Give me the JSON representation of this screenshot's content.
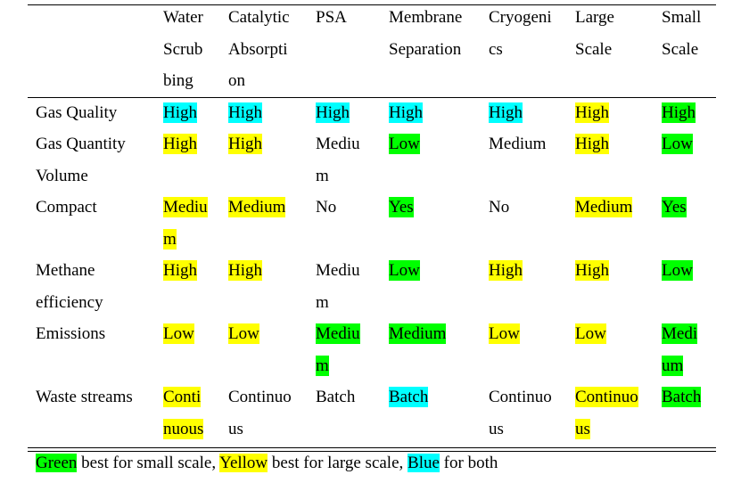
{
  "colors": {
    "green": "#00ff00",
    "yellow": "#ffff00",
    "blue": "#00ffff"
  },
  "headers": [
    "Water\nScrub\nbing",
    "Catalytic\nAbsorpti\non",
    "PSA",
    "Membrane\nSeparation",
    "Cryogeni\ncs",
    "Large\nScale",
    "Small\nScale"
  ],
  "rows": [
    {
      "label": "Gas Quality",
      "cells": [
        {
          "text": "High",
          "color": "blue"
        },
        {
          "text": "High",
          "color": "blue"
        },
        {
          "text": "High",
          "color": "blue"
        },
        {
          "text": "High",
          "color": "blue"
        },
        {
          "text": "High",
          "color": "blue"
        },
        {
          "text": "High",
          "color": "yellow"
        },
        {
          "text": "High",
          "color": "green"
        }
      ]
    },
    {
      "label": "Gas    Quantity\nVolume",
      "cells": [
        {
          "text": "High",
          "color": "yellow"
        },
        {
          "text": "High",
          "color": "yellow"
        },
        {
          "text": "Mediu\nm",
          "color": ""
        },
        {
          "text": "Low",
          "color": "green"
        },
        {
          "text": "Medium",
          "color": ""
        },
        {
          "text": "High",
          "color": "yellow"
        },
        {
          "text": "Low",
          "color": "green"
        }
      ]
    },
    {
      "label": "Compact",
      "cells": [
        {
          "text": "Mediu\nm",
          "color": "yellow"
        },
        {
          "text": "Medium",
          "color": "yellow"
        },
        {
          "text": "No",
          "color": ""
        },
        {
          "text": "Yes",
          "color": "green"
        },
        {
          "text": "No",
          "color": ""
        },
        {
          "text": "Medium",
          "color": "yellow"
        },
        {
          "text": "Yes",
          "color": "green"
        }
      ]
    },
    {
      "label": "Methane\nefficiency",
      "cells": [
        {
          "text": "High",
          "color": "yellow"
        },
        {
          "text": "High",
          "color": "yellow"
        },
        {
          "text": "Mediu\nm",
          "color": ""
        },
        {
          "text": "Low",
          "color": "green"
        },
        {
          "text": "High",
          "color": "yellow"
        },
        {
          "text": "High",
          "color": "yellow"
        },
        {
          "text": "Low",
          "color": "green"
        }
      ]
    },
    {
      "label": "Emissions",
      "cells": [
        {
          "text": "Low",
          "color": "yellow"
        },
        {
          "text": "Low",
          "color": "yellow"
        },
        {
          "text": "Mediu\nm",
          "color": "green"
        },
        {
          "text": "Medium",
          "color": "green"
        },
        {
          "text": "Low",
          "color": "yellow"
        },
        {
          "text": "Low",
          "color": "yellow"
        },
        {
          "text": "Medi\num",
          "color": "green"
        }
      ]
    },
    {
      "label": "Waste streams",
      "cells": [
        {
          "text": "Conti\nnuous",
          "color": "yellow"
        },
        {
          "text": "Continuo\nus",
          "color": ""
        },
        {
          "text": "Batch",
          "color": ""
        },
        {
          "text": "Batch",
          "color": "blue"
        },
        {
          "text": "Continuo\nus",
          "color": ""
        },
        {
          "text": "Continuo\nus",
          "color": "yellow"
        },
        {
          "text": "Batch",
          "color": "green"
        }
      ]
    }
  ],
  "legend": {
    "green_label": "Green",
    "green_text": " best for small scale, ",
    "yellow_label": "Yellow",
    "yellow_text": " best for large scale, ",
    "blue_label": "Blue",
    "blue_text": " for both"
  }
}
